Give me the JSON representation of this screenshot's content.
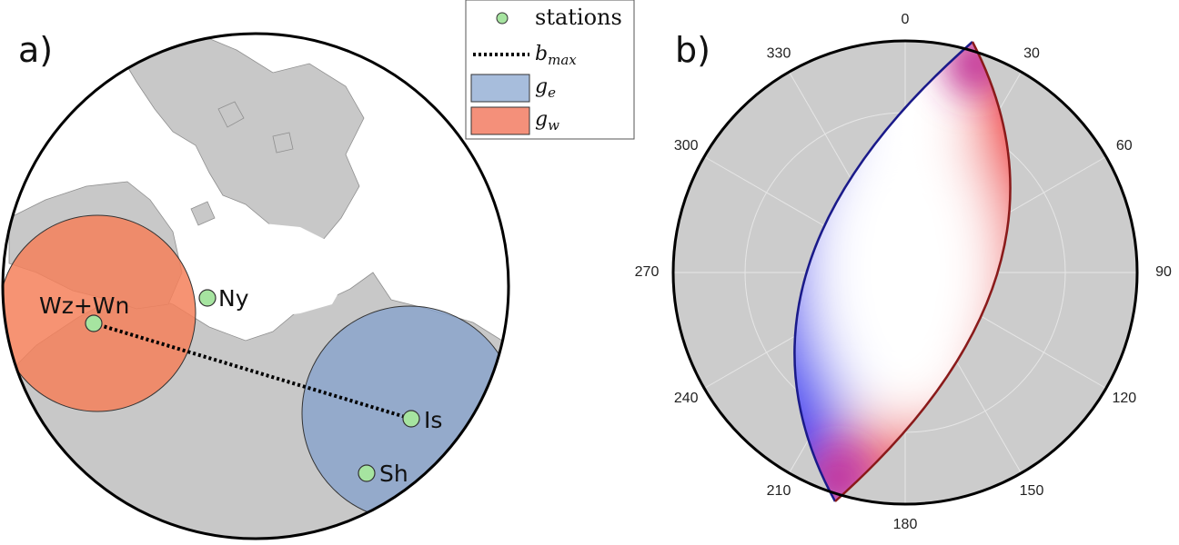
{
  "panels": {
    "a": {
      "label": "a)"
    },
    "b": {
      "label": "b)"
    }
  },
  "legend": {
    "stations": "stations",
    "bmax_base": "b",
    "bmax_sub": "max",
    "ge_base": "g",
    "ge_sub": "e",
    "gw_base": "g",
    "gw_sub": "w"
  },
  "colors": {
    "land": "#c8c8c8",
    "station_fill": "#a6e4a0",
    "gw_region": "#f4805a",
    "ge_region": "#7d9ccc",
    "polar_background": "#cccccc",
    "blue_edge": "#3b3bdc",
    "red_edge": "#e02020",
    "magenta_corner": "#c0309a"
  },
  "stations": [
    {
      "name": "Wz+Wn"
    },
    {
      "name": "Ny"
    },
    {
      "name": "Is"
    },
    {
      "name": "Sh"
    }
  ],
  "polar_plot": {
    "angle_labels": [
      "0",
      "30",
      "60",
      "90",
      "120",
      "150",
      "180",
      "210",
      "240",
      "270",
      "300",
      "330"
    ],
    "angle_values": [
      0,
      30,
      60,
      90,
      120,
      150,
      180,
      210,
      240,
      270,
      300,
      330
    ]
  }
}
